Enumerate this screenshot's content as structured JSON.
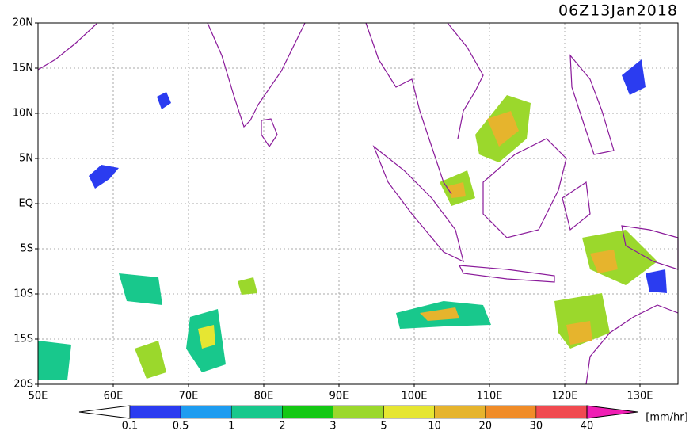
{
  "title": "06Z13Jan2018",
  "map": {
    "lat_labels": [
      "20N",
      "15N",
      "10N",
      "5N",
      "EQ",
      "5S",
      "10S",
      "15S",
      "20S"
    ],
    "lon_labels": [
      "50E",
      "60E",
      "70E",
      "80E",
      "90E",
      "100E",
      "110E",
      "120E",
      "130E"
    ]
  },
  "colorbar": {
    "levels": [
      0.1,
      0.5,
      1,
      2,
      3,
      5,
      10,
      20,
      30,
      40
    ],
    "colors": [
      "#ffffff",
      "#2b3cf0",
      "#1e9cf0",
      "#18c88c",
      "#14c814",
      "#9bd82c",
      "#e6e632",
      "#e6b42d",
      "#f08c28",
      "#f04a50",
      "#f01eb4"
    ],
    "unit": "[mm/hr]"
  }
}
